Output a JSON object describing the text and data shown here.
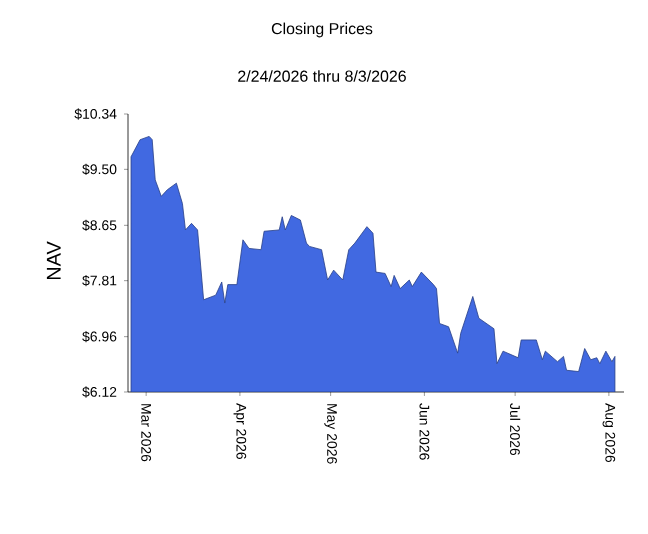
{
  "chart_data": {
    "type": "area",
    "title": "Closing Prices",
    "subtitle": "2/24/2026 thru 8/3/2026",
    "ylabel": "NAV",
    "x": [
      "2026-02-24",
      "2026-02-27",
      "2026-03-02",
      "2026-03-03",
      "2026-03-04",
      "2026-03-06",
      "2026-03-08",
      "2026-03-11",
      "2026-03-13",
      "2026-03-14",
      "2026-03-16",
      "2026-03-18",
      "2026-03-20",
      "2026-03-24",
      "2026-03-26",
      "2026-03-27",
      "2026-03-28",
      "2026-03-31",
      "2026-04-02",
      "2026-04-04",
      "2026-04-08",
      "2026-04-09",
      "2026-04-14",
      "2026-04-15",
      "2026-04-16",
      "2026-04-18",
      "2026-04-21",
      "2026-04-23",
      "2026-04-24",
      "2026-04-28",
      "2026-04-30",
      "2026-05-02",
      "2026-05-05",
      "2026-05-07",
      "2026-05-09",
      "2026-05-13",
      "2026-05-15",
      "2026-05-16",
      "2026-05-19",
      "2026-05-21",
      "2026-05-22",
      "2026-05-24",
      "2026-05-27",
      "2026-05-28",
      "2026-05-31",
      "2026-06-04",
      "2026-06-05",
      "2026-06-06",
      "2026-06-09",
      "2026-06-12",
      "2026-06-13",
      "2026-06-17",
      "2026-06-19",
      "2026-06-24",
      "2026-06-25",
      "2026-06-27",
      "2026-07-02",
      "2026-07-03",
      "2026-07-08",
      "2026-07-10",
      "2026-07-11",
      "2026-07-15",
      "2026-07-17",
      "2026-07-18",
      "2026-07-22",
      "2026-07-24",
      "2026-07-26",
      "2026-07-28",
      "2026-07-29",
      "2026-07-31",
      "2026-08-02",
      "2026-08-03"
    ],
    "series": [
      {
        "color": "#4169e1",
        "values": [
          9.69,
          9.95,
          10.0,
          9.95,
          9.34,
          9.09,
          9.19,
          9.29,
          8.98,
          8.58,
          8.68,
          8.58,
          7.52,
          7.59,
          7.79,
          7.47,
          7.75,
          7.75,
          8.43,
          8.3,
          8.28,
          8.56,
          8.58,
          8.78,
          8.58,
          8.8,
          8.73,
          8.38,
          8.33,
          8.28,
          7.82,
          7.97,
          7.82,
          8.28,
          8.38,
          8.63,
          8.53,
          7.94,
          7.92,
          7.72,
          7.89,
          7.69,
          7.82,
          7.72,
          7.94,
          7.75,
          7.69,
          7.16,
          7.11,
          6.71,
          7.01,
          7.57,
          7.24,
          7.08,
          6.55,
          6.74,
          6.64,
          6.91,
          6.91,
          6.61,
          6.74,
          6.58,
          6.66,
          6.45,
          6.43,
          6.78,
          6.61,
          6.64,
          6.55,
          6.74,
          6.58,
          6.66
        ]
      }
    ],
    "xlim": [
      "2026-02-23",
      "2026-08-06"
    ],
    "xticks": [
      {
        "value": "2026-03-01",
        "label": "Mar 2026"
      },
      {
        "value": "2026-04-01",
        "label": "Apr 2026"
      },
      {
        "value": "2026-05-01",
        "label": "May 2026"
      },
      {
        "value": "2026-06-01",
        "label": "Jun 2026"
      },
      {
        "value": "2026-07-01",
        "label": "Jul 2026"
      },
      {
        "value": "2026-08-01",
        "label": "Aug 2026"
      }
    ],
    "ylim": [
      6.12,
      10.34
    ],
    "yticks": [
      {
        "value": 6.12,
        "label": "$6.12"
      },
      {
        "value": 6.96,
        "label": "$6.96"
      },
      {
        "value": 7.81,
        "label": "$7.81"
      },
      {
        "value": 8.65,
        "label": "$8.65"
      },
      {
        "value": 9.5,
        "label": "$9.50"
      },
      {
        "value": 10.34,
        "label": "$10.34"
      }
    ],
    "grid": false
  }
}
